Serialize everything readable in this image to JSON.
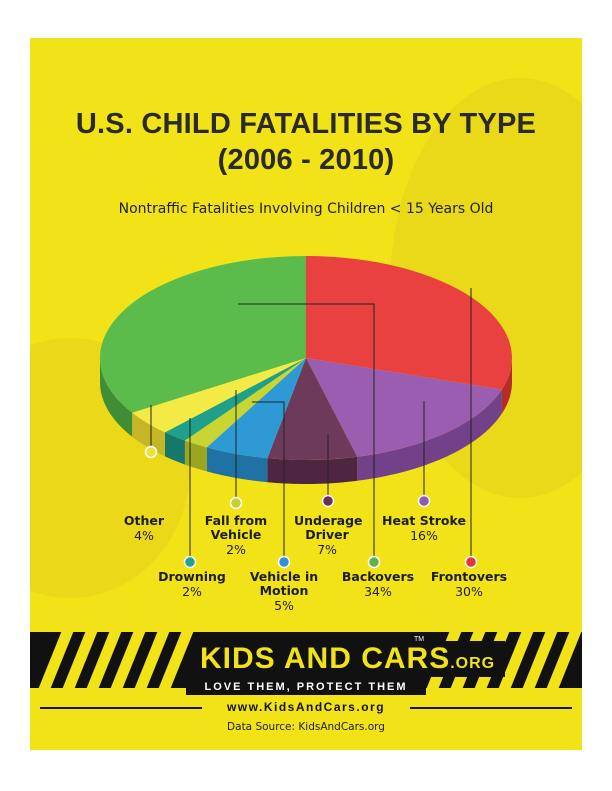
{
  "poster": {
    "title_line1": "U.S. CHILD FATALITIES BY TYPE",
    "title_line2": "(2006 - 2010)",
    "subtitle": "Nontraffic Fatalities Involving Children < 15 Years Old"
  },
  "chart_data": {
    "type": "pie",
    "title": "U.S. CHILD FATALITIES BY TYPE (2006 - 2010)",
    "subtitle": "Nontraffic Fatalities Involving Children < 15 Years Old",
    "slices": [
      {
        "label": "Frontovers",
        "pct_label": "30%",
        "value": 30,
        "color": "#e8413f",
        "side": "#b52c2a",
        "dot": "#e0373a"
      },
      {
        "label": "Heat Stroke",
        "pct_label": "16%",
        "value": 16,
        "color": "#9b5db0",
        "side": "#73418a",
        "dot": "#9557b0"
      },
      {
        "label": "Underage Driver",
        "pct_label": "7%",
        "value": 7,
        "color": "#6e3a5c",
        "side": "#4f2642",
        "dot": "#6a2e5a"
      },
      {
        "label": "Vehicle in Motion",
        "pct_label": "5%",
        "value": 5,
        "color": "#2d9ad6",
        "side": "#1e72a4",
        "dot": "#2e93d4"
      },
      {
        "label": "Fall from Vehicle",
        "pct_label": "2%",
        "value": 2,
        "color": "#c8d532",
        "side": "#9aa522",
        "dot": "#c5d236"
      },
      {
        "label": "Drowning",
        "pct_label": "2%",
        "value": 2,
        "color": "#1fa08a",
        "side": "#16786a",
        "dot": "#22a38e"
      },
      {
        "label": "Other",
        "pct_label": "4%",
        "value": 4,
        "color": "#f4ea45",
        "side": "#c4b726",
        "dot": "#ede13d"
      },
      {
        "label": "Backovers",
        "pct_label": "34%",
        "value": 34,
        "color": "#5bbc4c",
        "side": "#3f8e35",
        "dot": "#5cb54a"
      }
    ],
    "legend_placement": "bottom, callout labels"
  },
  "labels": [
    {
      "name": "Other",
      "pct": "4%"
    },
    {
      "name": "Fall from Vehicle",
      "pct": "2%"
    },
    {
      "name": "Underage Driver",
      "pct": "7%"
    },
    {
      "name": "Heat Stroke",
      "pct": "16%"
    },
    {
      "name": "Drowning",
      "pct": "2%"
    },
    {
      "name": "Vehicle in Motion",
      "pct": "5%"
    },
    {
      "name": "Backovers",
      "pct": "34%"
    },
    {
      "name": "Frontovers",
      "pct": "30%"
    }
  ],
  "brand": {
    "name_main": "KIDS AND CARS",
    "name_org": ".ORG",
    "tm": "TM",
    "tagline": "LOVE THEM, PROTECT THEM",
    "url": "www.KidsAndCars.org"
  },
  "source": "Data Source: KidsAndCars.org",
  "colors": {
    "background": "#f2e218",
    "band": "#111111"
  }
}
